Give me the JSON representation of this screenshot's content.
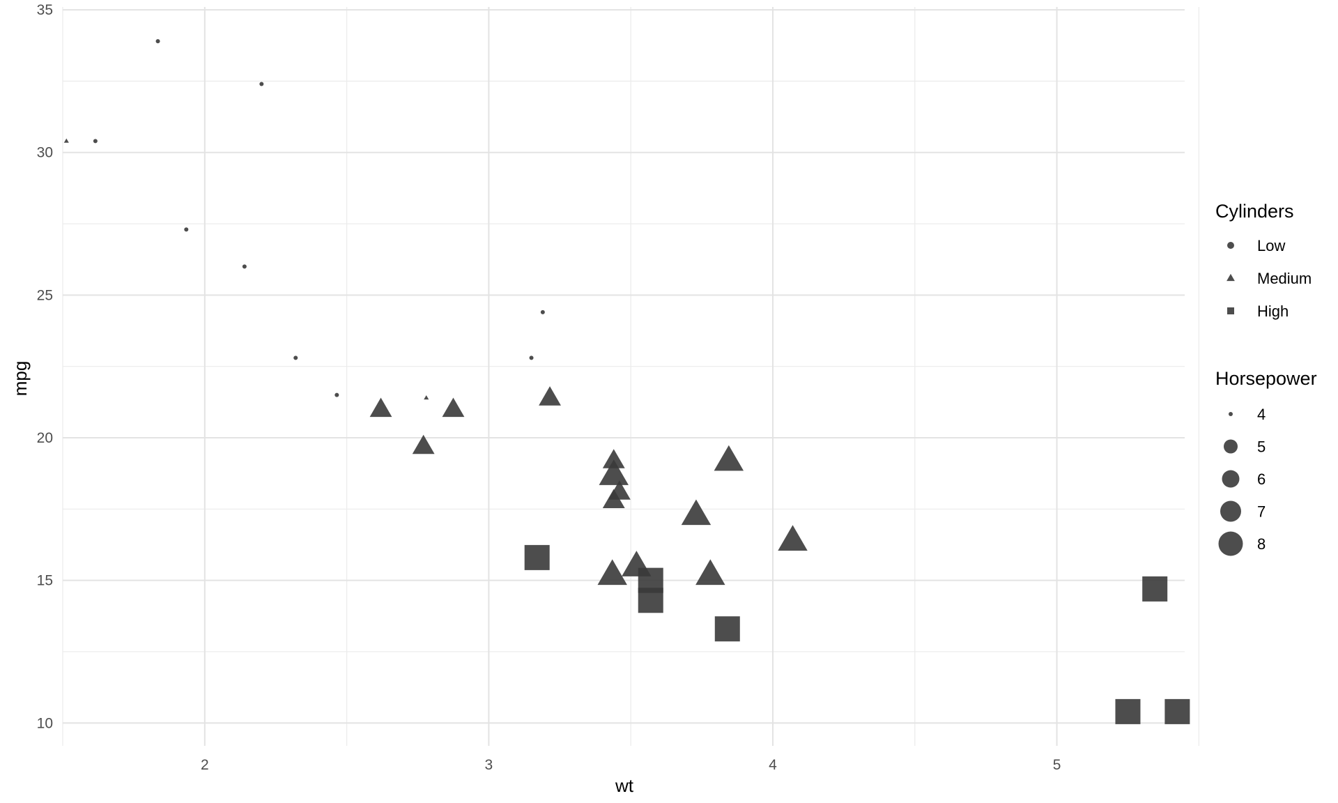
{
  "chart_data": {
    "type": "scatter",
    "title": "",
    "xlabel": "wt",
    "ylabel": "mpg",
    "xlim": [
      1.5,
      5.45
    ],
    "ylim": [
      9.2,
      35.1
    ],
    "x_ticks": [
      2,
      3,
      4,
      5
    ],
    "y_ticks": [
      10,
      15,
      20,
      25,
      30,
      35
    ],
    "grid": true,
    "point_color": "#3a3a3a",
    "point_opacity": 0.9,
    "legend_placement": "right",
    "legends": {
      "shape": {
        "title": "Cylinders",
        "entries": [
          {
            "label": "Low",
            "shape": "circle"
          },
          {
            "label": "Medium",
            "shape": "triangle"
          },
          {
            "label": "High",
            "shape": "square"
          }
        ]
      },
      "size": {
        "title": "Horsepower",
        "entries": [
          {
            "label": "4",
            "value": 4
          },
          {
            "label": "5",
            "value": 5
          },
          {
            "label": "6",
            "value": 6
          },
          {
            "label": "7",
            "value": 7
          },
          {
            "label": "8",
            "value": 8
          }
        ]
      }
    },
    "points": [
      {
        "x": 1.835,
        "y": 33.9,
        "shape": "circle",
        "size": 4
      },
      {
        "x": 2.2,
        "y": 32.4,
        "shape": "circle",
        "size": 4
      },
      {
        "x": 1.513,
        "y": 30.4,
        "shape": "triangle",
        "size": 4
      },
      {
        "x": 1.615,
        "y": 30.4,
        "shape": "circle",
        "size": 4
      },
      {
        "x": 1.935,
        "y": 27.3,
        "shape": "circle",
        "size": 4
      },
      {
        "x": 2.14,
        "y": 26.0,
        "shape": "circle",
        "size": 4
      },
      {
        "x": 3.19,
        "y": 24.4,
        "shape": "circle",
        "size": 4
      },
      {
        "x": 2.32,
        "y": 22.8,
        "shape": "circle",
        "size": 4
      },
      {
        "x": 3.15,
        "y": 22.8,
        "shape": "circle",
        "size": 4
      },
      {
        "x": 2.465,
        "y": 21.5,
        "shape": "circle",
        "size": 4
      },
      {
        "x": 2.78,
        "y": 21.4,
        "shape": "triangle",
        "size": 4
      },
      {
        "x": 2.62,
        "y": 21.0,
        "shape": "triangle",
        "size": 6
      },
      {
        "x": 2.875,
        "y": 21.0,
        "shape": "triangle",
        "size": 6
      },
      {
        "x": 3.215,
        "y": 21.4,
        "shape": "triangle",
        "size": 6
      },
      {
        "x": 2.77,
        "y": 19.7,
        "shape": "triangle",
        "size": 6
      },
      {
        "x": 3.44,
        "y": 19.2,
        "shape": "triangle",
        "size": 6
      },
      {
        "x": 3.44,
        "y": 18.7,
        "shape": "triangle",
        "size": 8
      },
      {
        "x": 3.46,
        "y": 18.1,
        "shape": "triangle",
        "size": 6
      },
      {
        "x": 3.44,
        "y": 17.8,
        "shape": "triangle",
        "size": 6
      },
      {
        "x": 3.845,
        "y": 19.2,
        "shape": "triangle",
        "size": 8
      },
      {
        "x": 3.73,
        "y": 17.3,
        "shape": "triangle",
        "size": 8
      },
      {
        "x": 4.07,
        "y": 16.4,
        "shape": "triangle",
        "size": 8
      },
      {
        "x": 3.52,
        "y": 15.5,
        "shape": "triangle",
        "size": 8
      },
      {
        "x": 3.435,
        "y": 15.2,
        "shape": "triangle",
        "size": 8
      },
      {
        "x": 3.78,
        "y": 15.2,
        "shape": "triangle",
        "size": 8
      },
      {
        "x": 3.17,
        "y": 15.8,
        "shape": "square",
        "size": 8
      },
      {
        "x": 3.57,
        "y": 15.0,
        "shape": "square",
        "size": 8
      },
      {
        "x": 3.57,
        "y": 14.3,
        "shape": "square",
        "size": 8
      },
      {
        "x": 3.84,
        "y": 13.3,
        "shape": "square",
        "size": 8
      },
      {
        "x": 5.345,
        "y": 14.7,
        "shape": "square",
        "size": 8
      },
      {
        "x": 5.25,
        "y": 10.4,
        "shape": "square",
        "size": 8
      },
      {
        "x": 5.424,
        "y": 10.4,
        "shape": "square",
        "size": 8
      }
    ]
  }
}
